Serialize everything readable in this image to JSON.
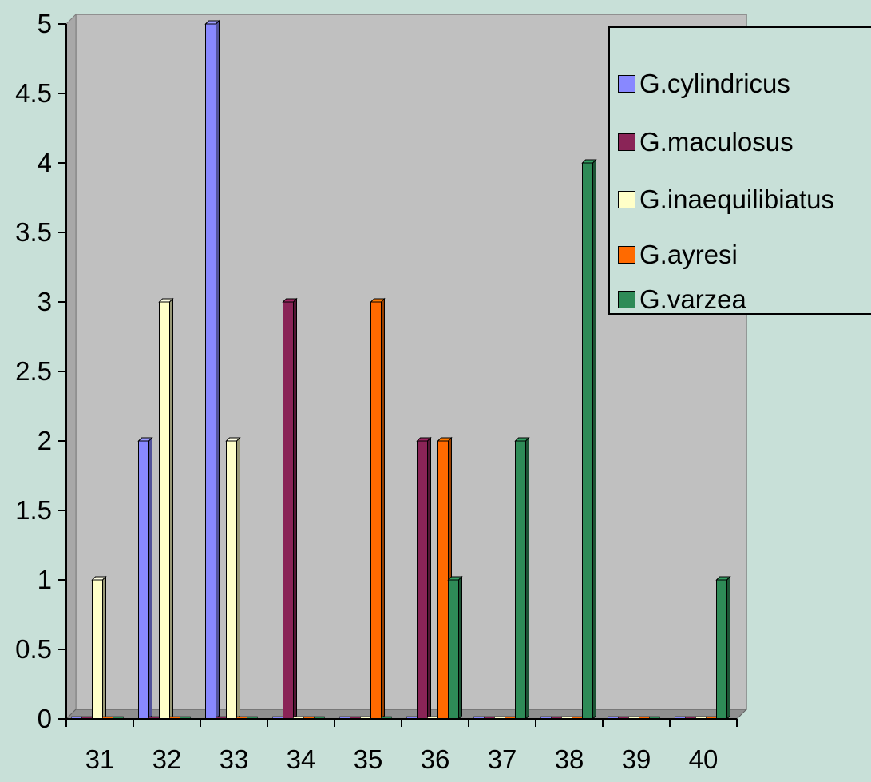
{
  "chart_data": {
    "type": "bar",
    "categories": [
      "31",
      "32",
      "33",
      "34",
      "35",
      "36",
      "37",
      "38",
      "39",
      "40"
    ],
    "series": [
      {
        "name": "G.cylindricus",
        "color": "#8888ff",
        "values": [
          0,
          2,
          5,
          0,
          0,
          0,
          0,
          0,
          0,
          0
        ]
      },
      {
        "name": "G.maculosus",
        "color": "#8a2457",
        "values": [
          0,
          0,
          0,
          3,
          0,
          2,
          0,
          0,
          0,
          0
        ]
      },
      {
        "name": "G.inaequilibiatus",
        "color": "#ffffc8",
        "values": [
          1,
          3,
          2,
          0,
          0,
          0,
          0,
          0,
          0,
          0
        ]
      },
      {
        "name": "G.ayresi",
        "color": "#ff6a00",
        "values": [
          0,
          0,
          0,
          0,
          3,
          2,
          0,
          0,
          0,
          0
        ]
      },
      {
        "name": "G.varzea",
        "color": "#2e8b57",
        "values": [
          0,
          0,
          0,
          0,
          0,
          1,
          2,
          4,
          0,
          1
        ]
      }
    ],
    "y_ticks": [
      "0",
      "0.5",
      "1",
      "1.5",
      "2",
      "2.5",
      "3",
      "3.5",
      "4",
      "4.5",
      "5"
    ],
    "ylim": [
      0,
      5
    ],
    "legend_position": "top-right",
    "plot_background": "#c0c0c0",
    "chart_background": "#c8e0d8"
  }
}
